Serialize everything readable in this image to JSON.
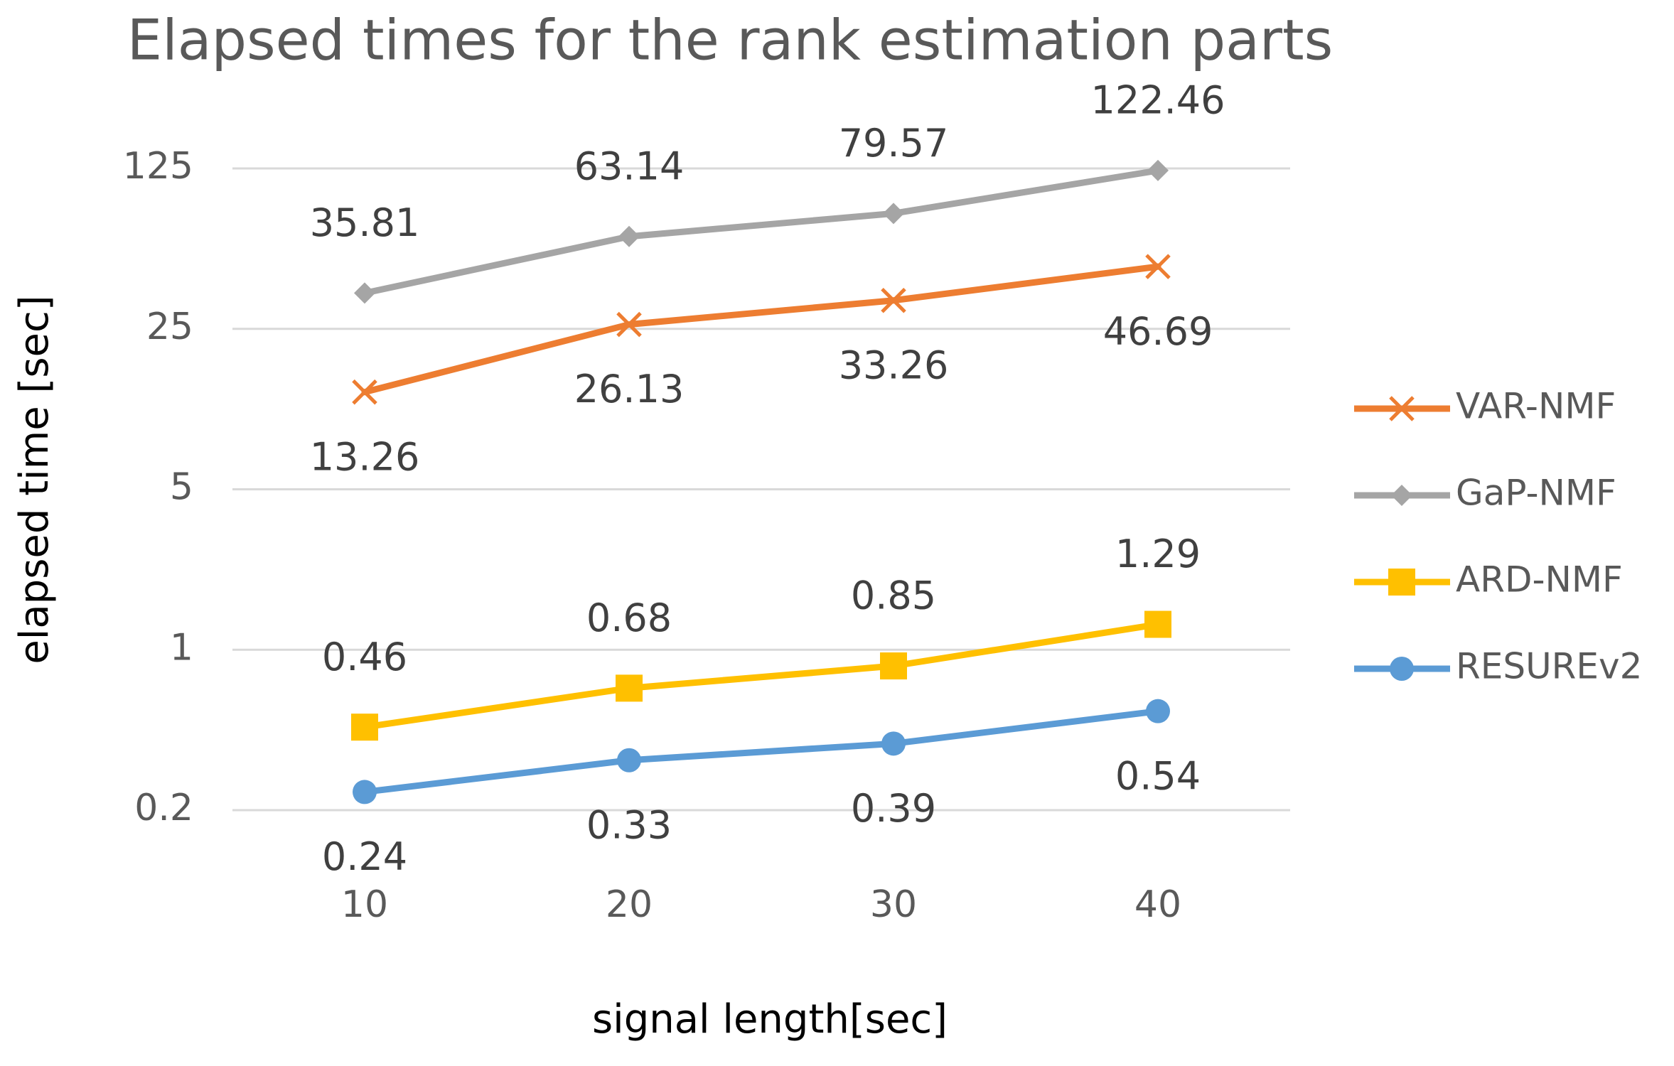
{
  "chart_data": {
    "type": "line",
    "title": "Elapsed times for the rank estimation parts",
    "x_label": "signal length[sec]",
    "y_label": "elapsed time [sec]",
    "categories": [
      "10",
      "20",
      "30",
      "40"
    ],
    "y_scale": "log",
    "ylim": [
      0.2,
      125
    ],
    "yticks": [
      0.2,
      1,
      5,
      25,
      125
    ],
    "grid": true,
    "legend": "right",
    "series": [
      {
        "name": "VAR-NMF",
        "color": "#ed7d31",
        "marker": "x",
        "label_position": "below",
        "values": [
          13.26,
          26.13,
          33.26,
          46.69
        ]
      },
      {
        "name": "GaP-NMF",
        "color": "#a5a5a5",
        "marker": "diamond",
        "label_position": "above",
        "values": [
          35.81,
          63.14,
          79.57,
          122.46
        ]
      },
      {
        "name": "ARD-NMF",
        "color": "#ffc000",
        "marker": "square",
        "label_position": "above",
        "values": [
          0.46,
          0.68,
          0.85,
          1.29
        ]
      },
      {
        "name": "RESUREv2",
        "color": "#5b9bd5",
        "marker": "circle",
        "label_position": "below",
        "values": [
          0.24,
          0.33,
          0.39,
          0.54
        ]
      }
    ]
  }
}
